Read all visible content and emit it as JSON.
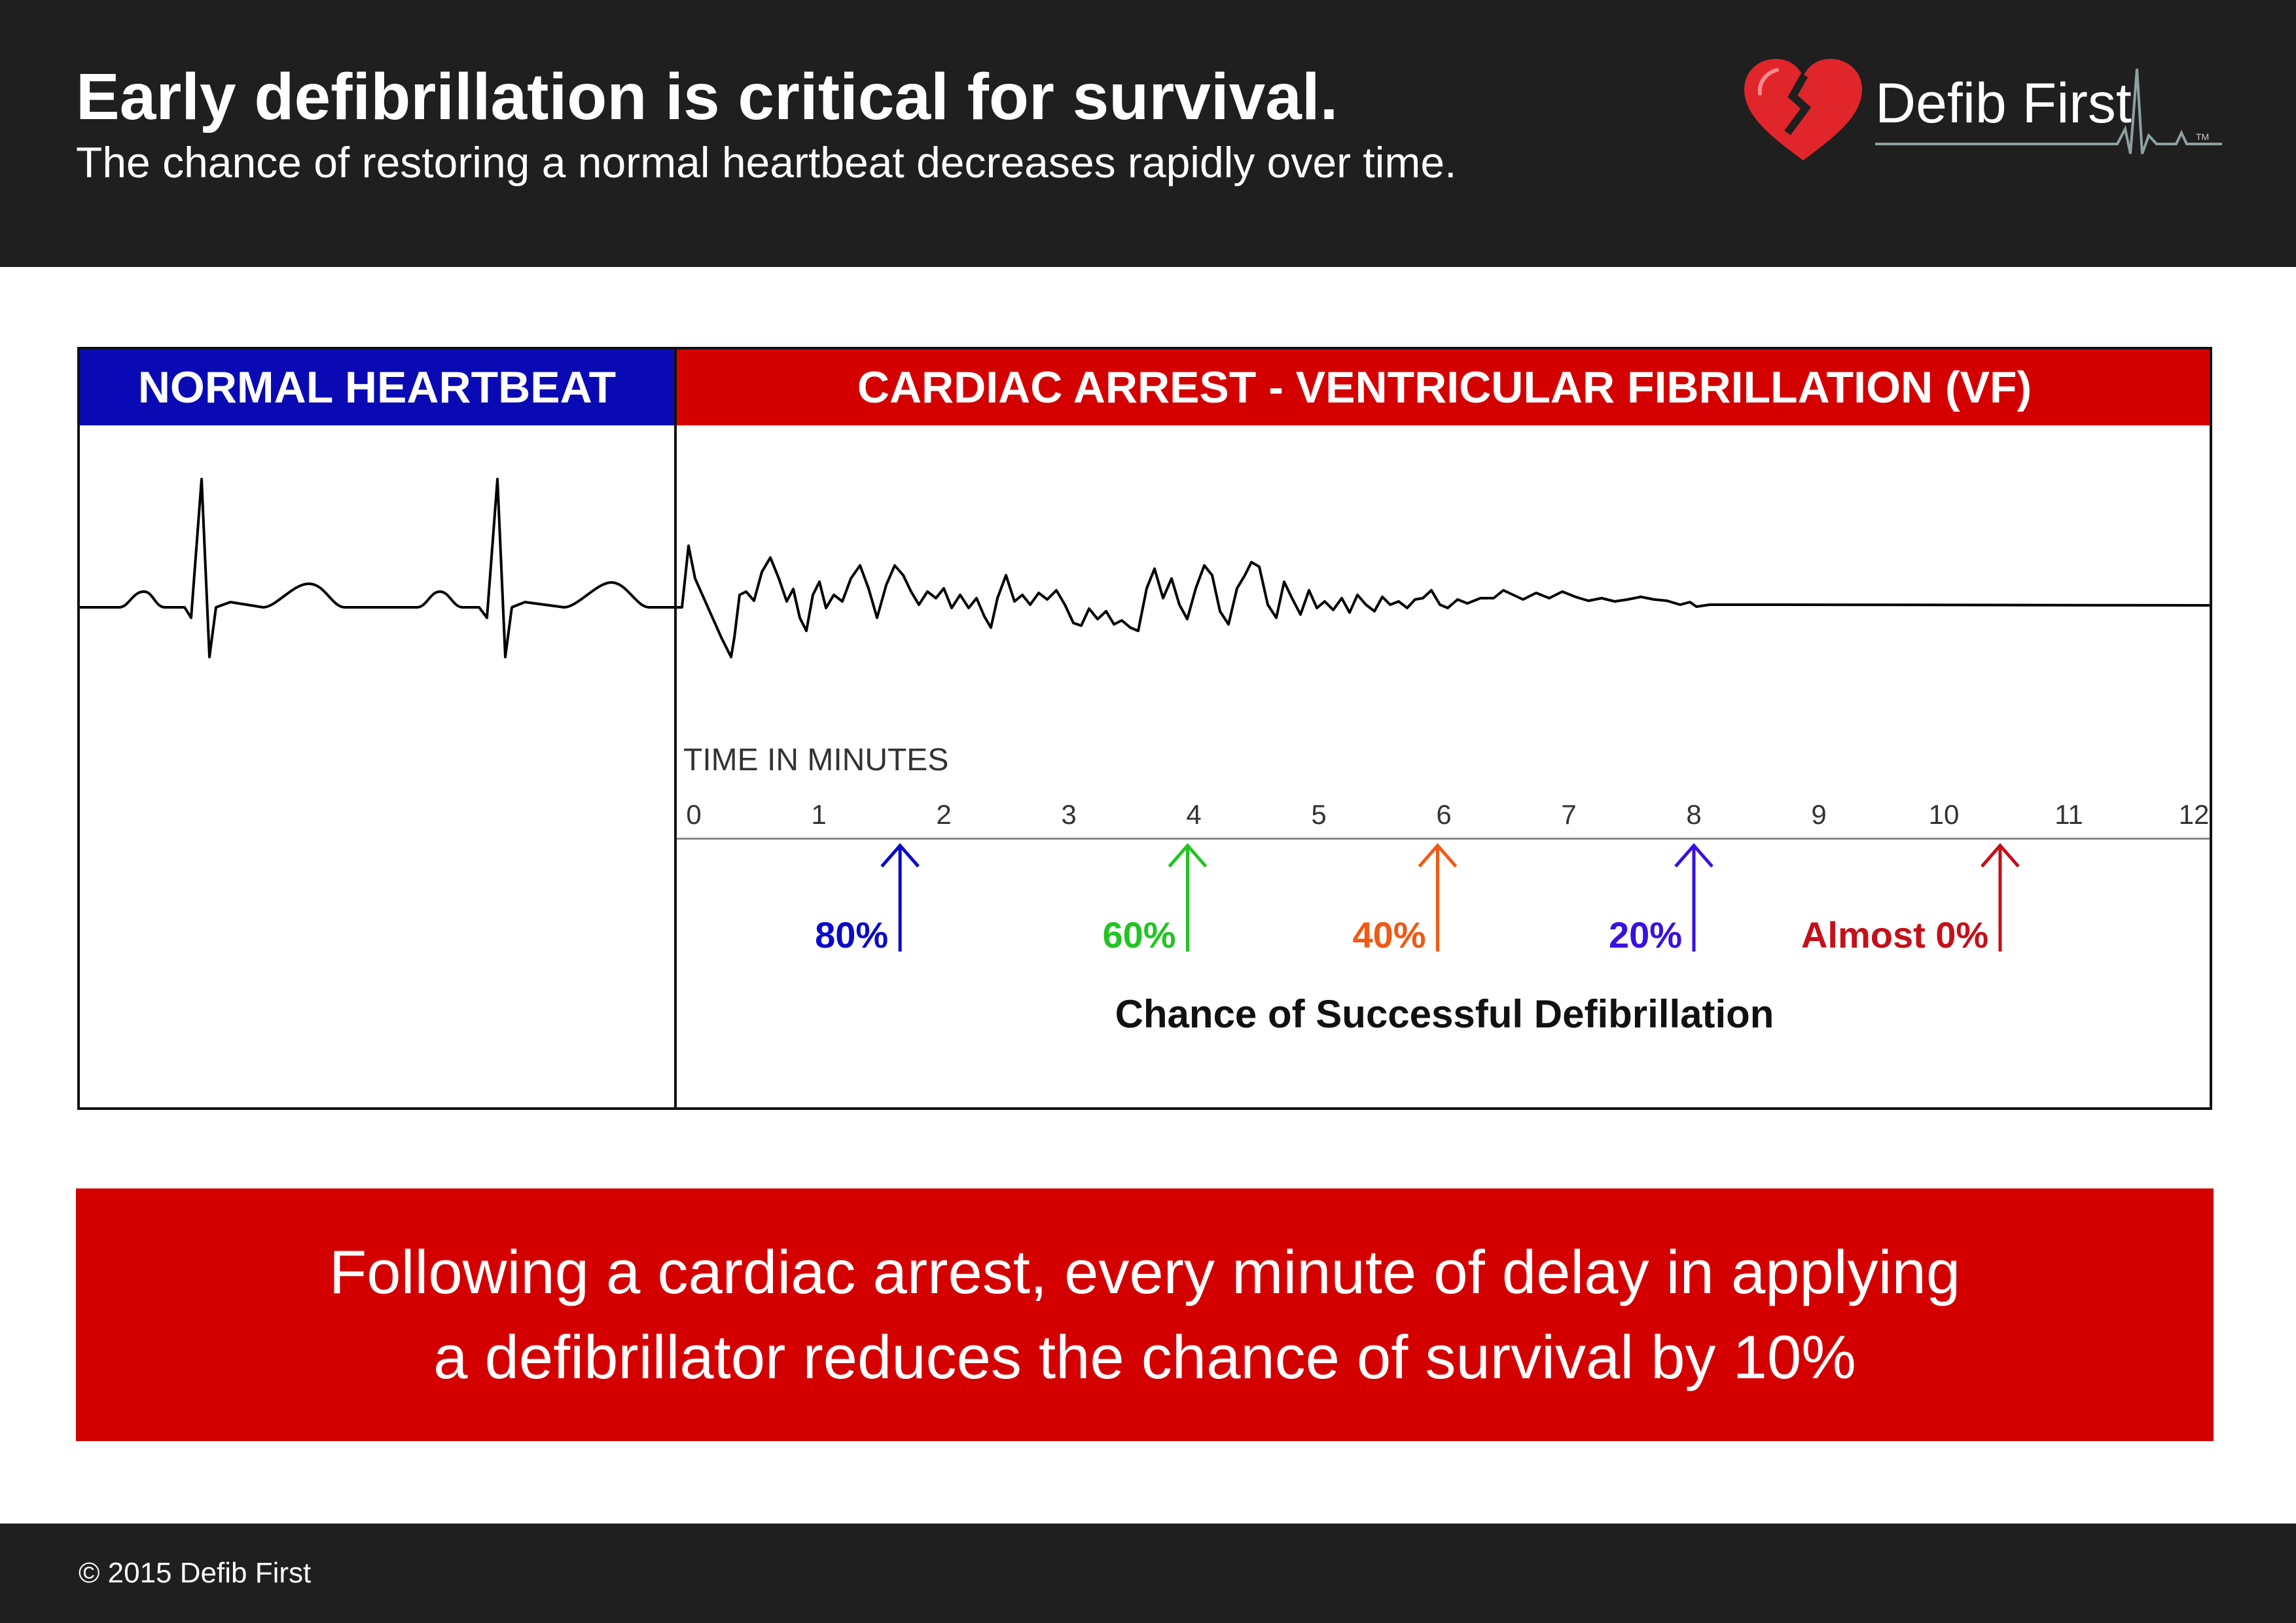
{
  "header": {
    "title": "Early defibrillation is critical for survival.",
    "subtitle": "The chance of restoring a normal heartbeat decreases rapidly over time."
  },
  "logo": {
    "name": "Defib First",
    "trademark": "TM",
    "icon": "broken-heart-icon",
    "color": "#e0262b"
  },
  "diagram": {
    "normal_heading": "NORMAL HEARTBEAT",
    "vf_heading": "CARDIAC ARREST - VENTRICULAR FIBRILLATION (VF)",
    "time_axis_label": "TIME IN MINUTES",
    "ticks": [
      "0",
      "1",
      "2",
      "3",
      "4",
      "5",
      "6",
      "7",
      "8",
      "9",
      "10",
      "11",
      "12"
    ],
    "markers": [
      {
        "minute": 1.65,
        "label": "80%",
        "color": "#0a0ac8"
      },
      {
        "minute": 3.95,
        "label": "60%",
        "color": "#22c422"
      },
      {
        "minute": 5.95,
        "label": "40%",
        "color": "#f05a14"
      },
      {
        "minute": 8.0,
        "label": "20%",
        "color": "#3a10e0"
      },
      {
        "minute": 10.45,
        "label": "Almost 0%",
        "color": "#c4101a"
      }
    ],
    "caption": "Chance of Successful Defibrillation",
    "colors": {
      "normal_header": "#0a0ab4",
      "vf_header": "#d40000"
    }
  },
  "callout": {
    "line1": "Following a cardiac arrest, every minute of delay in applying",
    "line2": "a defibrillator reduces the chance of survival by 10%"
  },
  "footer": {
    "copyright": "© 2015 Defib First"
  }
}
